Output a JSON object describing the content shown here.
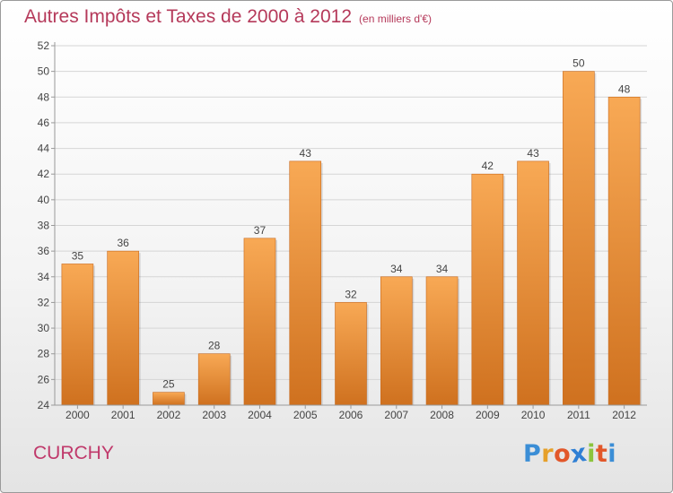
{
  "title": "Autres Impôts et Taxes de 2000 à 2012",
  "subtitle": "(en milliers d'€)",
  "location": "CURCHY",
  "logo": {
    "letters": [
      "P",
      "r",
      "o",
      "x",
      "i",
      "t",
      "i"
    ],
    "colors": [
      "#3b8ed6",
      "#e6a02a",
      "#e2572a",
      "#2f7fd4",
      "#8cc43d",
      "#e2572a",
      "#3b8ed6"
    ]
  },
  "colors": {
    "title": "#b5395a",
    "bar_light": "#f8a955",
    "bar_dark": "#cf711f",
    "axis": "#999999",
    "grid": "#d5d5d5"
  },
  "chart_data": {
    "type": "bar",
    "title": "Autres Impôts et Taxes de 2000 à 2012",
    "subtitle": "(en milliers d'€)",
    "categories": [
      "2000",
      "2001",
      "2002",
      "2003",
      "2004",
      "2005",
      "2006",
      "2007",
      "2008",
      "2009",
      "2010",
      "2011",
      "2012"
    ],
    "values": [
      35,
      36,
      25,
      28,
      37,
      43,
      32,
      34,
      34,
      42,
      43,
      50,
      48
    ],
    "ylim": [
      24,
      52
    ],
    "yticks": [
      24,
      26,
      28,
      30,
      32,
      34,
      36,
      38,
      40,
      42,
      44,
      46,
      48,
      50,
      52
    ],
    "grid": "horizontal",
    "data_labels": true
  }
}
